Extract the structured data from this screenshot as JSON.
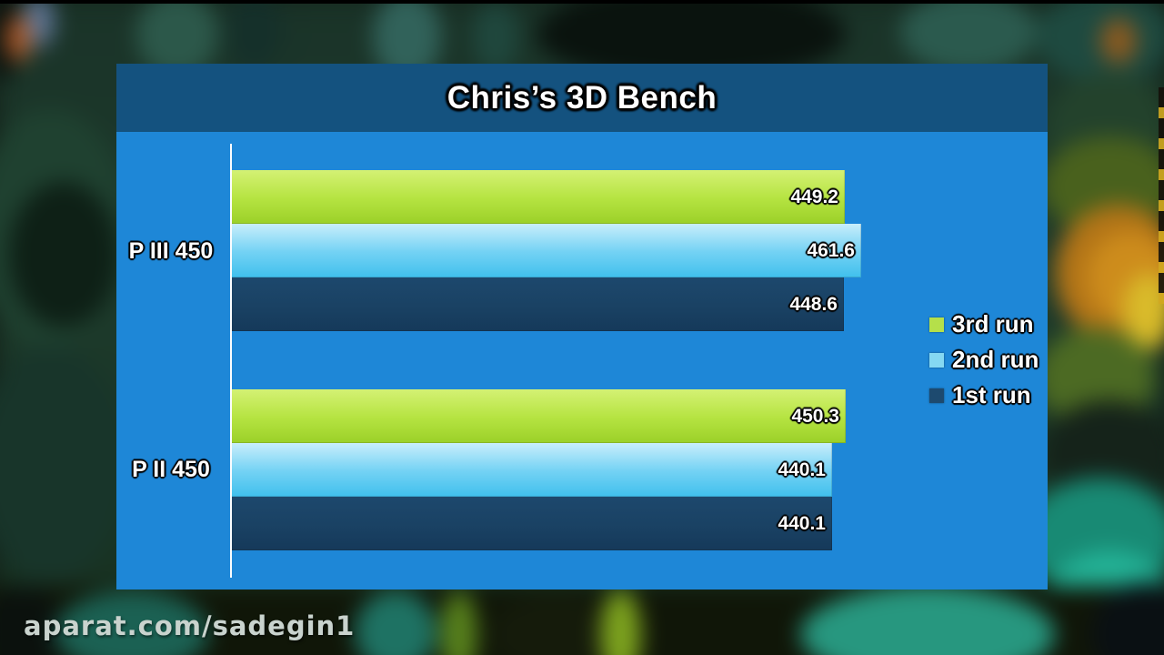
{
  "page": {
    "watermark": "aparat.com/sadegin1"
  },
  "panel": {
    "title": "Chris’s 3D Bench"
  },
  "chart_data": {
    "type": "bar",
    "orientation": "horizontal",
    "title": "Chris’s 3D Bench",
    "categories": [
      "P III 450",
      "P II 450"
    ],
    "series": [
      {
        "name": "3rd run",
        "values": [
          449.2,
          450.3
        ],
        "gradient": [
          "#d4f174",
          "#b6e442",
          "#9bd028"
        ],
        "legend_color": "#b5e04a"
      },
      {
        "name": "2nd run",
        "values": [
          461.6,
          440.1
        ],
        "gradient": [
          "#c8eefb",
          "#74d2f4",
          "#40c0ed"
        ],
        "legend_color": "#85d8f2"
      },
      {
        "name": "1st run",
        "values": [
          448.6,
          440.1
        ],
        "gradient": [
          "#1d486d",
          "#1a4264",
          "#15395a"
        ],
        "legend_color": "#1d4a6f"
      }
    ],
    "xlim": [
      0,
      598
    ],
    "grid": false,
    "legend_position": "right",
    "value_label_format": "one-decimal",
    "colors": {
      "panel_bg": "#1e87d7",
      "header_bg": "#14527f",
      "axis": "#fbfdff",
      "label_text": "#ffffff"
    }
  }
}
